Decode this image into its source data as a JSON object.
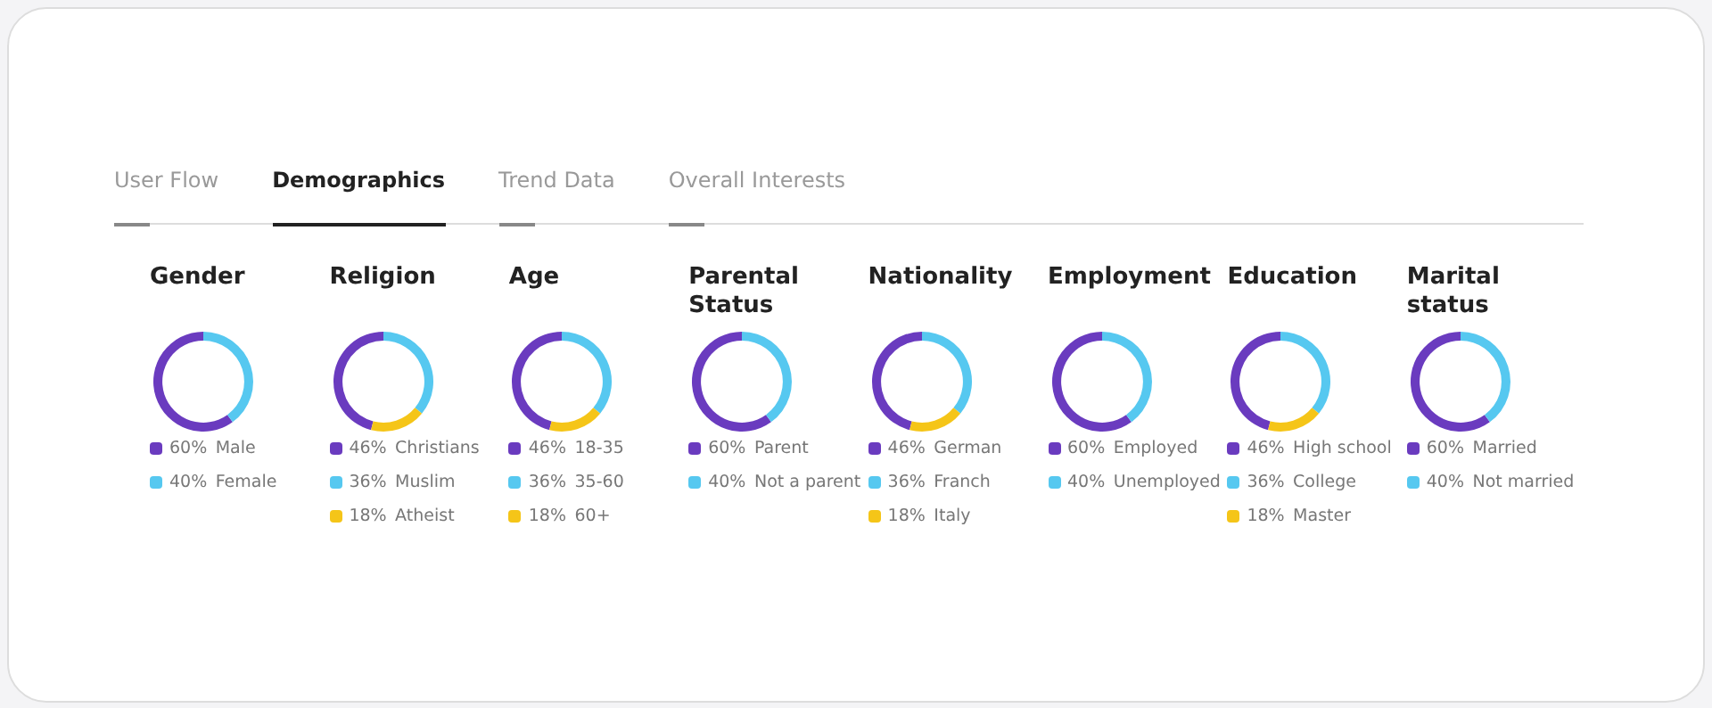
{
  "chart_data": [
    {
      "type": "other",
      "annotations": [
        "User Flow",
        "Demographics",
        "Trend Data",
        "Overall Interests"
      ]
    },
    {
      "type": "donut",
      "title": "Gender",
      "categories": [
        "Male",
        "Female"
      ],
      "values": [
        60,
        40
      ],
      "value_labels": [
        "60%",
        "40%"
      ],
      "colors": [
        "#6a3bbf",
        "#56c8f0"
      ],
      "legend": "bottom"
    },
    {
      "type": "donut",
      "title": "Religion",
      "categories": [
        "Christians",
        "Muslim",
        "Atheist"
      ],
      "values": [
        46,
        36,
        18
      ],
      "value_labels": [
        "46%",
        "36%",
        "18%"
      ],
      "colors": [
        "#6a3bbf",
        "#56c8f0",
        "#f5c518"
      ],
      "legend": "bottom"
    },
    {
      "type": "donut",
      "title": "Age",
      "categories": [
        "18-35",
        "35-60",
        "60+"
      ],
      "values": [
        46,
        36,
        18
      ],
      "value_labels": [
        "46%",
        "36%",
        "18%"
      ],
      "colors": [
        "#6a3bbf",
        "#56c8f0",
        "#f5c518"
      ],
      "legend": "bottom"
    },
    {
      "type": "donut",
      "title": "Parental Status",
      "categories": [
        "Parent",
        "Not a parent"
      ],
      "values": [
        60,
        40
      ],
      "value_labels": [
        "60%",
        "40%"
      ],
      "colors": [
        "#6a3bbf",
        "#56c8f0"
      ],
      "legend": "bottom"
    },
    {
      "type": "donut",
      "title": "Nationality",
      "categories": [
        "German",
        "Franch",
        "Italy"
      ],
      "values": [
        46,
        36,
        18
      ],
      "value_labels": [
        "46%",
        "36%",
        "18%"
      ],
      "colors": [
        "#6a3bbf",
        "#56c8f0",
        "#f5c518"
      ],
      "legend": "bottom"
    },
    {
      "type": "donut",
      "title": "Employment",
      "categories": [
        "Employed",
        "Unemployed"
      ],
      "values": [
        60,
        40
      ],
      "value_labels": [
        "60%",
        "40%"
      ],
      "colors": [
        "#6a3bbf",
        "#56c8f0"
      ],
      "legend": "bottom"
    },
    {
      "type": "donut",
      "title": "Education",
      "categories": [
        "High school",
        "College",
        "Master"
      ],
      "values": [
        46,
        36,
        18
      ],
      "value_labels": [
        "46%",
        "36%",
        "18%"
      ],
      "colors": [
        "#6a3bbf",
        "#56c8f0",
        "#f5c518"
      ],
      "legend": "bottom"
    },
    {
      "type": "donut",
      "title": "Marital status",
      "categories": [
        "Married",
        "Not married"
      ],
      "values": [
        60,
        40
      ],
      "value_labels": [
        "60%",
        "40%"
      ],
      "colors": [
        "#6a3bbf",
        "#56c8f0"
      ],
      "legend": "bottom"
    }
  ]
}
